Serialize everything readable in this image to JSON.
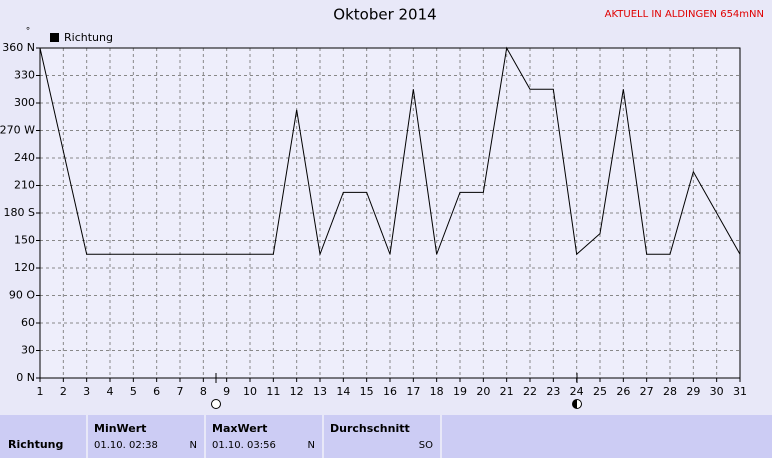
{
  "chart_data": {
    "type": "line",
    "title": "Oktober 2014",
    "annotation": "AKTUELL IN ALDINGEN 654mNN",
    "unit": "°",
    "x": [
      1,
      2,
      3,
      4,
      5,
      6,
      7,
      8,
      9,
      10,
      11,
      12,
      13,
      14,
      15,
      16,
      17,
      18,
      19,
      20,
      21,
      22,
      23,
      24,
      25,
      26,
      27,
      28,
      29,
      30,
      31
    ],
    "series": [
      {
        "name": "Richtung",
        "color": "#000000",
        "values": [
          360,
          247.5,
          135,
          135,
          135,
          135,
          135,
          135,
          135,
          135,
          135,
          292.5,
          135,
          202.5,
          202.5,
          135,
          315,
          135,
          202.5,
          202.5,
          360,
          315,
          315,
          135,
          157.5,
          315,
          135,
          135,
          225,
          180,
          135
        ]
      }
    ],
    "xlim": [
      1,
      31
    ],
    "xticks": [
      1,
      2,
      3,
      4,
      5,
      6,
      7,
      8,
      9,
      10,
      11,
      12,
      13,
      14,
      15,
      16,
      17,
      18,
      19,
      20,
      21,
      22,
      23,
      24,
      25,
      26,
      27,
      28,
      29,
      30,
      31
    ],
    "ylim": [
      0,
      360
    ],
    "yticks": [
      {
        "value": 0,
        "label": "0 N"
      },
      30,
      60,
      {
        "value": 90,
        "label": "90 O"
      },
      120,
      150,
      {
        "value": 180,
        "label": "180 S"
      },
      210,
      240,
      {
        "value": 270,
        "label": "270 W"
      },
      300,
      330,
      {
        "value": 360,
        "label": "360 N"
      }
    ],
    "grid": true,
    "legend": "top-left"
  },
  "table": {
    "row_label": "Richtung",
    "columns": [
      {
        "header": "MinWert",
        "date": "01.10.  02:38",
        "value": "N"
      },
      {
        "header": "MaxWert",
        "date": "01.10.  03:56",
        "value": "N"
      },
      {
        "header": "Durchschnitt",
        "value": "SO"
      }
    ]
  }
}
